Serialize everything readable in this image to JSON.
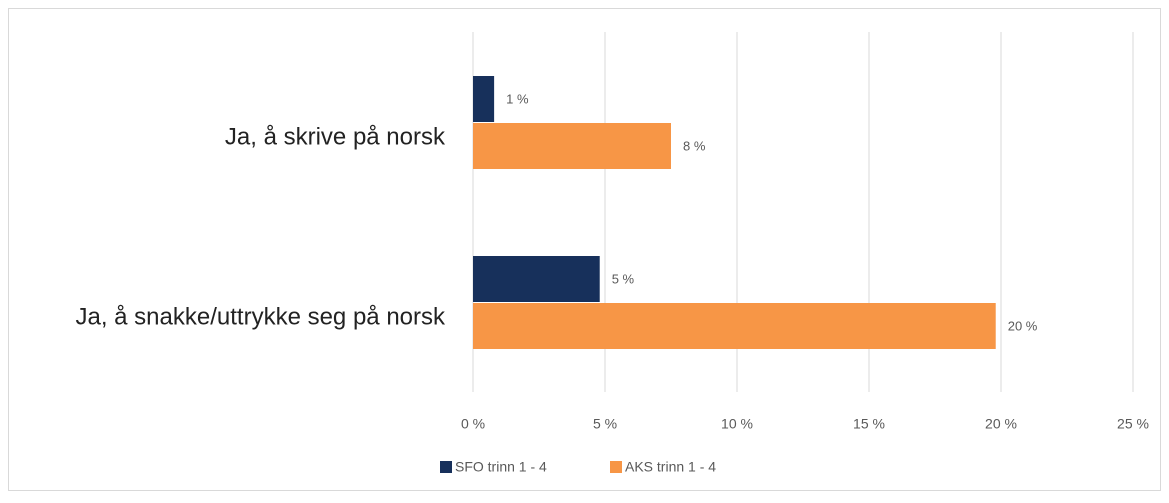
{
  "chart_data": {
    "type": "hbar",
    "categories": [
      "Ja, å skrive på norsk",
      "Ja, å snakke/uttrykke seg på norsk"
    ],
    "series": [
      {
        "name": "SFO trinn 1 - 4",
        "color": "#17305b",
        "values": [
          0.8,
          4.8
        ],
        "value_labels": [
          "1 %",
          "5 %"
        ]
      },
      {
        "name": "AKS trinn 1 - 4",
        "color": "#f79646",
        "values": [
          7.5,
          19.8
        ],
        "value_labels": [
          "8 %",
          "20 %"
        ]
      }
    ],
    "xlim": [
      0,
      25
    ],
    "xticks": [
      {
        "value": 0,
        "label": "0 %"
      },
      {
        "value": 5,
        "label": "5 %"
      },
      {
        "value": 10,
        "label": "10 %"
      },
      {
        "value": 15,
        "label": "15 %"
      },
      {
        "value": 20,
        "label": "20 %"
      },
      {
        "value": 25,
        "label": "25 %"
      }
    ],
    "grid": true,
    "legend": "bottom"
  }
}
